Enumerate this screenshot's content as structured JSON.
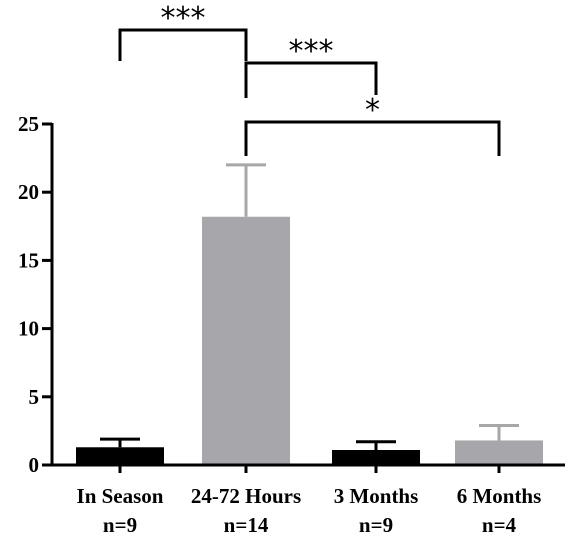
{
  "chart_data": {
    "type": "bar",
    "categories": [
      "In Season",
      "24-72 Hours",
      "3 Months",
      "6 Months"
    ],
    "sample_sizes": [
      "n=9",
      "n=14",
      "n=9",
      "n=4"
    ],
    "values": [
      1.3,
      18.2,
      1.1,
      1.8
    ],
    "error_upper": [
      1.9,
      22.0,
      1.7,
      2.9
    ],
    "bar_colors": [
      "#000000",
      "#a7a6aa",
      "#000000",
      "#a7a6aa"
    ],
    "ylim": [
      0,
      25
    ],
    "yticks": [
      "0",
      "5",
      "10",
      "15",
      "20",
      "25"
    ],
    "title": "",
    "xlabel": "",
    "ylabel": "",
    "grid": false,
    "significance": [
      {
        "from": 0,
        "to": 1,
        "label": "***"
      },
      {
        "from": 1,
        "to": 2,
        "label": "***"
      },
      {
        "from": 1,
        "to": 3,
        "label": "*"
      }
    ]
  }
}
